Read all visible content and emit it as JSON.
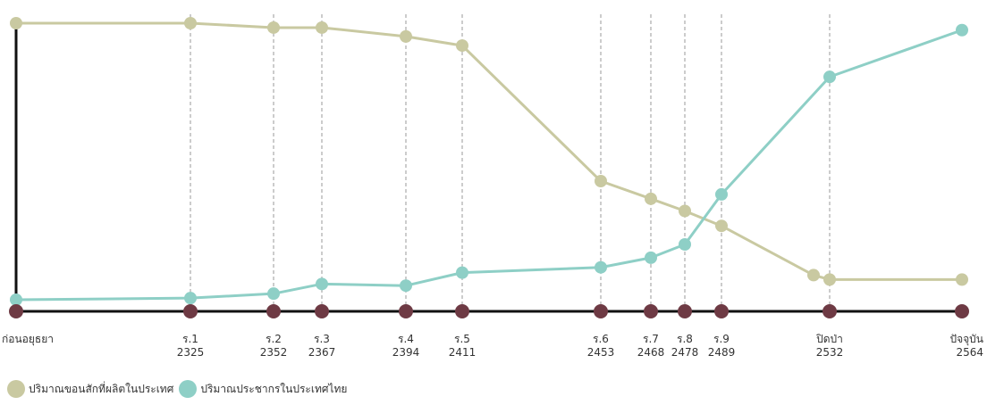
{
  "chart_data": {
    "type": "line",
    "categories": [
      {
        "label": "ก่อนอยุธยา",
        "year": ""
      },
      {
        "label": "ร.1",
        "year": "2325"
      },
      {
        "label": "ร.2",
        "year": "2352"
      },
      {
        "label": "ร.3",
        "year": "2367"
      },
      {
        "label": "ร.4",
        "year": "2394"
      },
      {
        "label": "ร.5",
        "year": "2411"
      },
      {
        "label": "ร.6",
        "year": "2453"
      },
      {
        "label": "ร.7",
        "year": "2468"
      },
      {
        "label": "ร.8",
        "year": "2478"
      },
      {
        "label": "ร.9",
        "year": "2489"
      },
      {
        "label": "ปิดป่า",
        "year": "2532"
      },
      {
        "label": "ปัจจุบัน",
        "year": "2564"
      }
    ],
    "series": [
      {
        "name": "ปริมาณขอนสักที่ผลิตในประเทศ",
        "color": "#c9c9a1",
        "points": [
          {
            "x": "ก่อนอยุธยา",
            "y": 100
          },
          {
            "x": "ร.1",
            "y": 100
          },
          {
            "x": "ร.2",
            "y": 98.4
          },
          {
            "x": "ร.3",
            "y": 98.4
          },
          {
            "x": "ร.4",
            "y": 95.2
          },
          {
            "x": "ร.5",
            "y": 91.9
          },
          {
            "x": "ร.6",
            "y": 42.9
          },
          {
            "x": "ร.7",
            "y": 36.5
          },
          {
            "x": "ร.8",
            "y": 32.1
          },
          {
            "x": "ร.9",
            "y": 26.7
          },
          {
            "x": "ปิดป่า (early)",
            "y": 8.9
          },
          {
            "x": "ปิดป่า",
            "y": 7.3
          },
          {
            "x": "ปัจจุบัน",
            "y": 7.3
          }
        ]
      },
      {
        "name": "ปริมาณประชากรในประเทศไทย",
        "color": "#8ecfc6",
        "points": [
          {
            "x": "ก่อนอยุธยา",
            "y": 0
          },
          {
            "x": "ร.1",
            "y": 0.6
          },
          {
            "x": "ร.2",
            "y": 2.2
          },
          {
            "x": "ร.3",
            "y": 5.7
          },
          {
            "x": "ร.4",
            "y": 5.1
          },
          {
            "x": "ร.5",
            "y": 9.8
          },
          {
            "x": "ร.6",
            "y": 11.7
          },
          {
            "x": "ร.7",
            "y": 15.2
          },
          {
            "x": "ร.8",
            "y": 20.0
          },
          {
            "x": "ร.9",
            "y": 38.1
          },
          {
            "x": "ปิดป่า",
            "y": 80.6
          },
          {
            "x": "ปัจจุบัน",
            "y": 97.5
          }
        ]
      }
    ],
    "ylim": [
      0,
      100
    ],
    "grid": "vertical-dashed",
    "legend": "bottom-left",
    "marker_color": "#6e3a44",
    "axis_color": "#111111"
  }
}
